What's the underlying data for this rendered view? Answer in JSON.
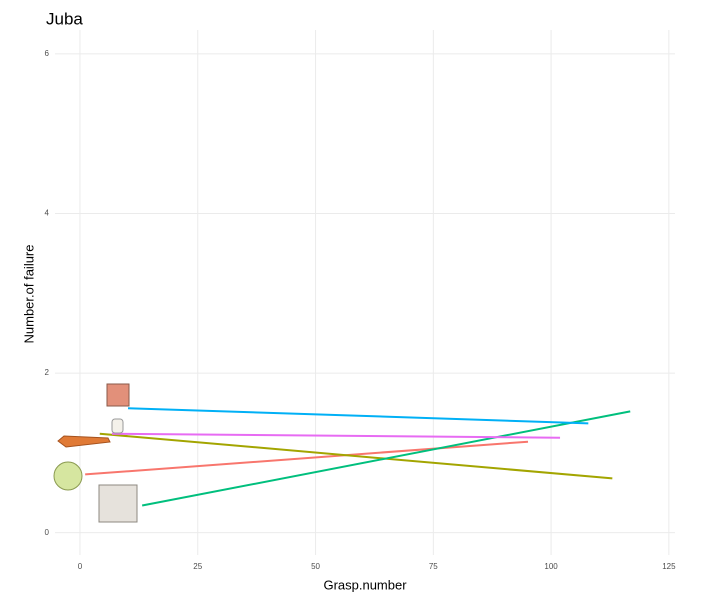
{
  "chart_data": {
    "type": "line",
    "title": "Juba",
    "x_label": "Grasp.number",
    "y_label": "Number.of failure",
    "xlim": [
      -5.3,
      126.3
    ],
    "ylim": [
      -0.28,
      6.3
    ],
    "xticks": [
      0,
      25,
      50,
      75,
      100,
      125
    ],
    "yticks": [
      0,
      2,
      4,
      6
    ],
    "grid": true,
    "series": [
      {
        "color": "#F8766D",
        "x": [
          1.1,
          95.1
        ],
        "values": [
          0.73,
          1.14
        ]
      },
      {
        "color": "#A3A500",
        "x": [
          4.2,
          113
        ],
        "values": [
          1.24,
          0.68
        ]
      },
      {
        "color": "#00BF7D",
        "x": [
          13.2,
          116.8
        ],
        "values": [
          0.34,
          1.52
        ]
      },
      {
        "color": "#00B0F6",
        "x": [
          10.2,
          107.9
        ],
        "values": [
          1.56,
          1.37
        ]
      },
      {
        "color": "#E76BF3",
        "x": [
          6.8,
          101.9
        ],
        "values": [
          1.24,
          1.19
        ]
      }
    ]
  }
}
